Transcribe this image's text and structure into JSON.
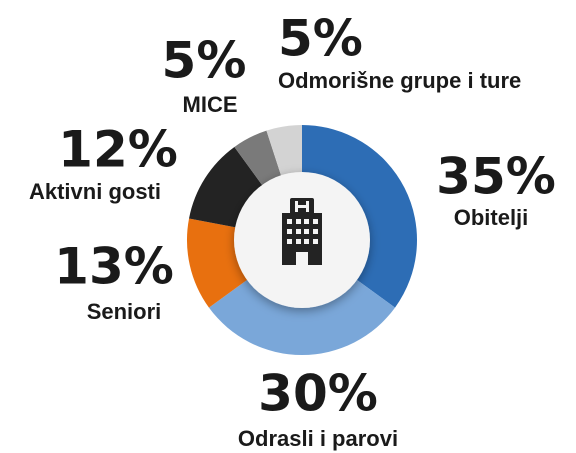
{
  "chart_data": {
    "type": "donut",
    "categories": [
      "Obitelji",
      "Odrasli i parovi",
      "Seniori",
      "Aktivni gosti",
      "MICE",
      "Odmorišne grupe i ture"
    ],
    "values": [
      35,
      30,
      13,
      12,
      5,
      5
    ],
    "value_labels": [
      "35%",
      "30%",
      "13%",
      "12%",
      "5%",
      "5%"
    ],
    "colors": [
      "#2d6db5",
      "#7aa7d9",
      "#e8700f",
      "#232323",
      "#7a7a7a",
      "#d3d3d3"
    ]
  }
}
